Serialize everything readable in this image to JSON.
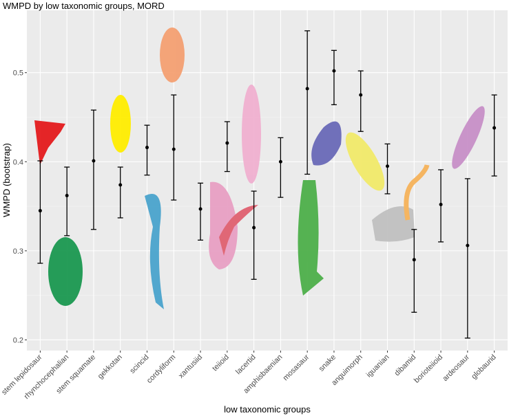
{
  "chart_data": {
    "type": "errorbar",
    "title": "WMPD by low taxonomic groups, MORD",
    "x_label": "low taxonomic groups",
    "y_label": "WMPD (bootstrap)",
    "categories": [
      "stem lepidosaur",
      "rhynchocephalian",
      "stem squamate",
      "gekkotan",
      "scincid",
      "cordyliform",
      "xantusiid",
      "teiioid",
      "lacertid",
      "amphisbaenian",
      "mosasaur",
      "snake",
      "anguimorph",
      "iguanian",
      "dibamid",
      "borioteiioid",
      "ardeosaur",
      "globaurid"
    ],
    "values": [
      0.345,
      0.362,
      0.401,
      0.374,
      0.416,
      0.414,
      0.347,
      0.421,
      0.326,
      0.4,
      0.482,
      0.502,
      0.475,
      0.395,
      0.29,
      0.352,
      0.306,
      0.438
    ],
    "lower": [
      0.286,
      0.317,
      0.324,
      0.337,
      0.385,
      0.357,
      0.312,
      0.389,
      0.268,
      0.36,
      0.386,
      0.464,
      0.434,
      0.364,
      0.231,
      0.31,
      0.202,
      0.384
    ],
    "upper": [
      0.401,
      0.394,
      0.458,
      0.394,
      0.441,
      0.475,
      0.376,
      0.445,
      0.367,
      0.427,
      0.547,
      0.525,
      0.502,
      0.42,
      0.324,
      0.391,
      0.381,
      0.475
    ],
    "color": "#000000",
    "ylim": [
      0.188,
      0.57
    ],
    "yticks": [
      0.2,
      0.3,
      0.4,
      0.5
    ],
    "grid": true
  }
}
